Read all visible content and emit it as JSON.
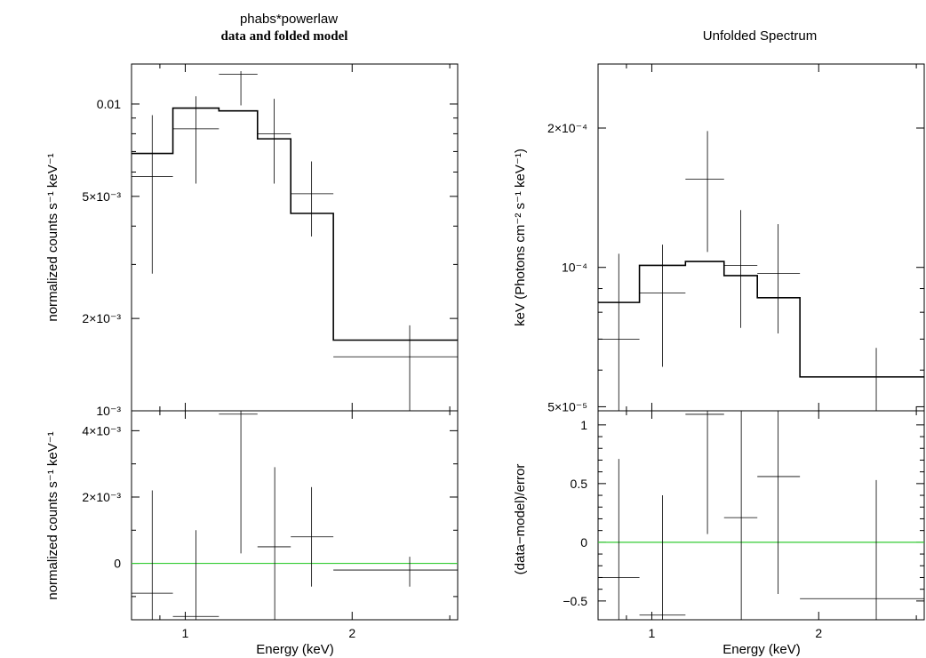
{
  "chart_data": [
    {
      "type": "step",
      "panel": "left-top",
      "title": "phabs*powerlaw",
      "subtitle": "data and folded model",
      "ylabel": "normalized counts s⁻¹ keV⁻¹",
      "xscale": "log",
      "yscale": "log",
      "xlim": [
        0.8,
        3.1
      ],
      "ylim": [
        0.001,
        0.0135
      ],
      "yticks_major": [
        {
          "value": 0.01,
          "label": "0.01"
        },
        {
          "value": 0.005,
          "label": "5×10⁻³"
        },
        {
          "value": 0.002,
          "label": "2×10⁻³"
        },
        {
          "value": 0.001,
          "label": "10⁻³"
        }
      ],
      "yticks_minor": [
        0.003,
        0.004,
        0.006,
        0.007,
        0.008,
        0.009
      ],
      "data": [
        {
          "xlo": 0.8,
          "xhi": 0.95,
          "y": 0.0058,
          "ylo": 0.0028,
          "yhi": 0.0092
        },
        {
          "xlo": 0.95,
          "xhi": 1.15,
          "y": 0.0083,
          "ylo": 0.0055,
          "yhi": 0.0106
        },
        {
          "xlo": 1.15,
          "xhi": 1.35,
          "x": 1.26,
          "y": 0.0125,
          "ylo": 0.0099,
          "yhi": 0.0128
        },
        {
          "xlo": 1.35,
          "xhi": 1.55,
          "y": 0.008,
          "ylo": 0.0055,
          "yhi": 0.0104
        },
        {
          "xlo": 1.55,
          "xhi": 1.85,
          "x": 1.69,
          "y": 0.0051,
          "ylo": 0.0037,
          "yhi": 0.0065
        },
        {
          "xlo": 1.85,
          "xhi": 3.1,
          "x": 2.54,
          "y": 0.0015,
          "ylo": 0.001,
          "yhi": 0.0019
        }
      ],
      "model": [
        {
          "xlo": 0.8,
          "xhi": 0.95,
          "y": 0.0069
        },
        {
          "xlo": 0.95,
          "xhi": 1.15,
          "y": 0.0097
        },
        {
          "xlo": 1.15,
          "xhi": 1.35,
          "y": 0.0095
        },
        {
          "xlo": 1.35,
          "xhi": 1.55,
          "y": 0.0077
        },
        {
          "xlo": 1.55,
          "xhi": 1.85,
          "y": 0.0044
        },
        {
          "xlo": 1.85,
          "xhi": 3.1,
          "y": 0.0017
        }
      ]
    },
    {
      "type": "step",
      "panel": "left-bottom",
      "ylabel": "normalized counts s⁻¹ keV⁻¹",
      "xlabel": "Energy (keV)",
      "xscale": "log",
      "yscale": "linear",
      "xlim": [
        0.8,
        3.1
      ],
      "ylim": [
        -0.0017,
        0.0046
      ],
      "xticks_major": [
        {
          "value": 1,
          "label": "1"
        },
        {
          "value": 2,
          "label": "2"
        }
      ],
      "xticks_minor": [
        0.9,
        3
      ],
      "yticks_major": [
        {
          "value": 0.004,
          "label": "4×10⁻³"
        },
        {
          "value": 0.002,
          "label": "2×10⁻³"
        },
        {
          "value": 0,
          "label": "0"
        }
      ],
      "yticks_minor": [
        -0.001,
        0.001,
        0.003
      ],
      "zero_line": 0,
      "data": [
        {
          "xlo": 0.8,
          "xhi": 0.95,
          "y": -0.0009,
          "ylo": -0.0017,
          "yhi": 0.0022
        },
        {
          "xlo": 0.95,
          "xhi": 1.15,
          "y": -0.0016,
          "ylo": -0.0017,
          "yhi": 0.001
        },
        {
          "xlo": 1.15,
          "xhi": 1.35,
          "x": 1.26,
          "y": 0.0045,
          "ylo": 0.0003,
          "yhi": 0.0046
        },
        {
          "xlo": 1.35,
          "xhi": 1.55,
          "x": 1.45,
          "y": 0.0005,
          "ylo": -0.0017,
          "yhi": 0.0029
        },
        {
          "xlo": 1.55,
          "xhi": 1.85,
          "x": 1.69,
          "y": 0.0008,
          "ylo": -0.0007,
          "yhi": 0.0023
        },
        {
          "xlo": 1.85,
          "xhi": 3.1,
          "x": 2.54,
          "y": -0.0002,
          "ylo": -0.0007,
          "yhi": 0.0002
        }
      ]
    },
    {
      "type": "step",
      "panel": "right-top",
      "title": "Unfolded Spectrum",
      "ylabel": "keV (Photons cm⁻² s⁻¹ keV⁻¹)",
      "xscale": "log",
      "yscale": "log",
      "xlim": [
        0.8,
        3.1
      ],
      "ylim": [
        4.9e-05,
        0.000275
      ],
      "yticks_major": [
        {
          "value": 0.0002,
          "label": "2×10⁻⁴"
        },
        {
          "value": 0.0001,
          "label": "10⁻⁴"
        },
        {
          "value": 5e-05,
          "label": "5×10⁻⁵"
        }
      ],
      "yticks_minor": [
        6e-05,
        7e-05,
        8e-05,
        9e-05
      ],
      "data": [
        {
          "xlo": 0.8,
          "xhi": 0.95,
          "y": 7e-05,
          "ylo": 4.9e-05,
          "yhi": 0.000107
        },
        {
          "xlo": 0.95,
          "xhi": 1.15,
          "y": 8.8e-05,
          "ylo": 6.1e-05,
          "yhi": 0.000112
        },
        {
          "xlo": 1.15,
          "xhi": 1.35,
          "x": 1.26,
          "y": 0.000155,
          "ylo": 0.000108,
          "yhi": 0.000197
        },
        {
          "xlo": 1.35,
          "xhi": 1.55,
          "y": 0.000101,
          "ylo": 7.4e-05,
          "yhi": 0.000133
        },
        {
          "xlo": 1.55,
          "xhi": 1.85,
          "x": 1.69,
          "y": 9.7e-05,
          "ylo": 7.2e-05,
          "yhi": 0.000124
        },
        {
          "xlo": 1.85,
          "xhi": 3.1,
          "x": 2.54,
          "y": 5.8e-05,
          "ylo": 4.9e-05,
          "yhi": 6.7e-05
        }
      ],
      "model": [
        {
          "xlo": 0.8,
          "xhi": 0.95,
          "y": 8.4e-05
        },
        {
          "xlo": 0.95,
          "xhi": 1.15,
          "y": 0.000101
        },
        {
          "xlo": 1.15,
          "xhi": 1.35,
          "y": 0.000103
        },
        {
          "xlo": 1.35,
          "xhi": 1.55,
          "y": 9.6e-05
        },
        {
          "xlo": 1.55,
          "xhi": 1.85,
          "y": 8.6e-05
        },
        {
          "xlo": 1.85,
          "xhi": 3.1,
          "y": 5.8e-05
        }
      ]
    },
    {
      "type": "step",
      "panel": "right-bottom",
      "ylabel": "(data−model)/error",
      "xlabel": "Energy (keV)",
      "xscale": "log",
      "yscale": "linear",
      "xlim": [
        0.8,
        3.1
      ],
      "ylim": [
        -0.66,
        1.12
      ],
      "xticks_major": [
        {
          "value": 1,
          "label": "1"
        },
        {
          "value": 2,
          "label": "2"
        }
      ],
      "xticks_minor": [
        0.9,
        3
      ],
      "yticks_major": [
        {
          "value": 1,
          "label": "1"
        },
        {
          "value": 0.5,
          "label": "0.5"
        },
        {
          "value": 0,
          "label": "0"
        },
        {
          "value": -0.5,
          "label": "−0.5"
        }
      ],
      "yticks_minor": [
        -0.4,
        -0.3,
        -0.2,
        -0.1,
        0.1,
        0.2,
        0.3,
        0.4,
        0.6,
        0.7,
        0.8,
        0.9
      ],
      "zero_line": 0,
      "data": [
        {
          "xlo": 0.8,
          "xhi": 0.95,
          "y": -0.3,
          "ylo": -0.66,
          "yhi": 0.71
        },
        {
          "xlo": 0.95,
          "xhi": 1.15,
          "y": -0.62,
          "ylo": -0.66,
          "yhi": 0.4
        },
        {
          "xlo": 1.15,
          "xhi": 1.35,
          "x": 1.26,
          "y": 1.09,
          "ylo": 0.07,
          "yhi": 1.12
        },
        {
          "xlo": 1.35,
          "xhi": 1.55,
          "x": 1.45,
          "y": 0.21,
          "ylo": -0.66,
          "yhi": 1.12
        },
        {
          "xlo": 1.55,
          "xhi": 1.85,
          "x": 1.69,
          "y": 0.56,
          "ylo": -0.44,
          "yhi": 1.12
        },
        {
          "xlo": 1.85,
          "xhi": 3.1,
          "x": 2.54,
          "y": -0.48,
          "ylo": -0.66,
          "yhi": 0.53
        }
      ]
    }
  ],
  "colors": {
    "frame": "#000000",
    "zero_line": "#33cc33"
  }
}
